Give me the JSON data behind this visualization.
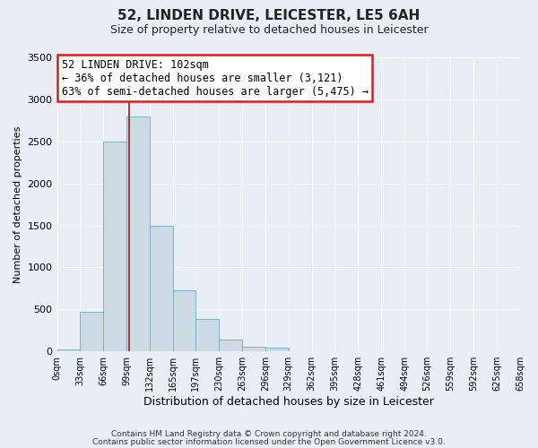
{
  "title": "52, LINDEN DRIVE, LEICESTER, LE5 6AH",
  "subtitle": "Size of property relative to detached houses in Leicester",
  "xlabel": "Distribution of detached houses by size in Leicester",
  "ylabel": "Number of detached properties",
  "footer_line1": "Contains HM Land Registry data © Crown copyright and database right 2024.",
  "footer_line2": "Contains public sector information licensed under the Open Government Licence v3.0.",
  "bar_edges": [
    0,
    33,
    66,
    99,
    132,
    165,
    197,
    230,
    263,
    296,
    329,
    362,
    395,
    428,
    461,
    494,
    526,
    559,
    592,
    625,
    658
  ],
  "bar_heights": [
    25,
    470,
    2500,
    2800,
    1500,
    730,
    390,
    140,
    60,
    50,
    0,
    0,
    0,
    0,
    0,
    0,
    0,
    0,
    0,
    0
  ],
  "bar_color": "#cdd9e5",
  "bar_edgecolor": "#6fa8c8",
  "tick_labels": [
    "0sqm",
    "33sqm",
    "66sqm",
    "99sqm",
    "132sqm",
    "165sqm",
    "197sqm",
    "230sqm",
    "263sqm",
    "296sqm",
    "329sqm",
    "362sqm",
    "395sqm",
    "428sqm",
    "461sqm",
    "494sqm",
    "526sqm",
    "559sqm",
    "592sqm",
    "625sqm",
    "658sqm"
  ],
  "ylim": [
    0,
    3500
  ],
  "yticks": [
    0,
    500,
    1000,
    1500,
    2000,
    2500,
    3000,
    3500
  ],
  "property_size": 102,
  "vline_color": "#9b1c1c",
  "annotation_box_edgecolor": "#cc2222",
  "annotation_title": "52 LINDEN DRIVE: 102sqm",
  "annotation_line2": "← 36% of detached houses are smaller (3,121)",
  "annotation_line3": "63% of semi-detached houses are larger (5,475) →",
  "bg_color": "#e8eef4",
  "plot_bg_color": "#e8eef4",
  "grid_color": "#ffffff"
}
